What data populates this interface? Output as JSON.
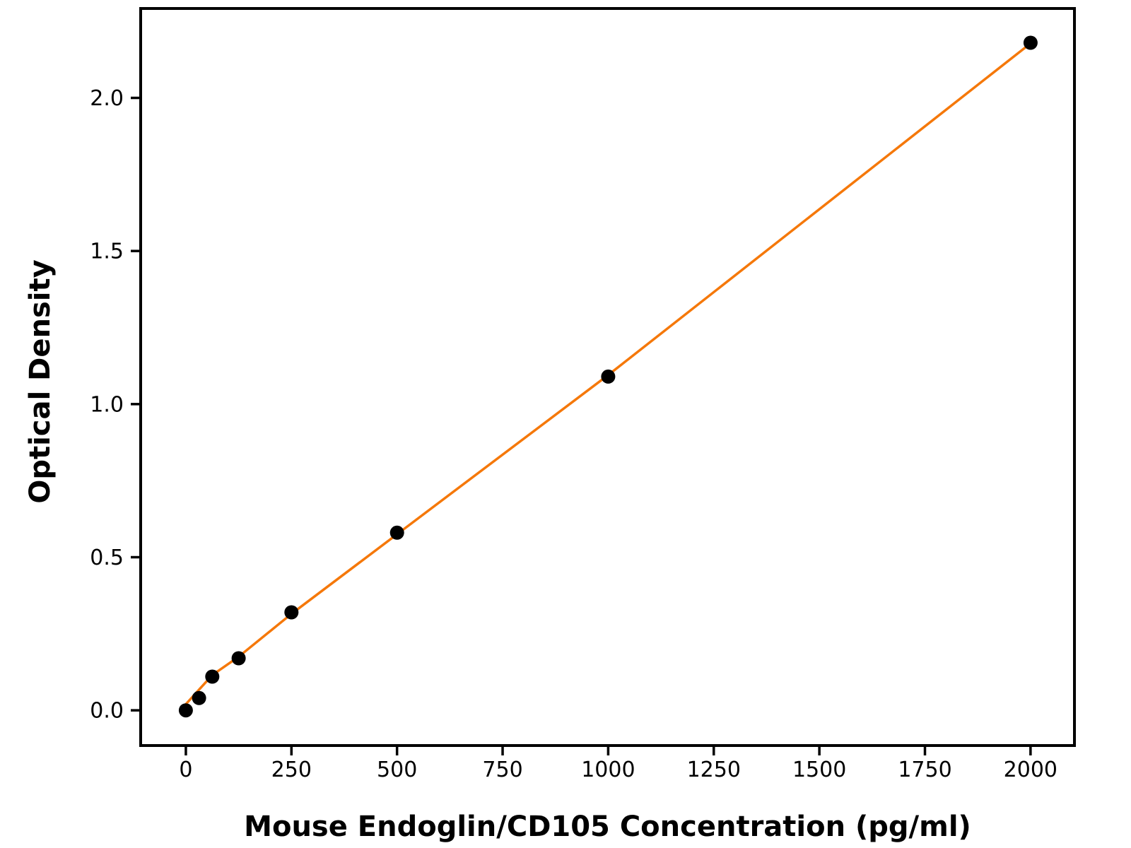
{
  "figure": {
    "background": "#ffffff",
    "text_color": "#000000"
  },
  "chart_data": {
    "type": "scatter",
    "title": "",
    "xlabel": "Mouse Endoglin/CD105 Concentration (pg/ml)",
    "ylabel": "Optical Density",
    "xlim": [
      -107,
      2104
    ],
    "ylim": [
      -0.115,
      2.292
    ],
    "x_ticks": [
      0,
      250,
      500,
      750,
      1000,
      1250,
      1500,
      1750,
      2000
    ],
    "x_tick_labels": [
      "0",
      "250",
      "500",
      "750",
      "1000",
      "1250",
      "1500",
      "1750",
      "2000"
    ],
    "y_ticks": [
      0.0,
      0.5,
      1.0,
      1.5,
      2.0
    ],
    "y_tick_labels": [
      "0.0",
      "0.5",
      "1.0",
      "1.5",
      "2.0"
    ],
    "grid": false,
    "legend_position": "none",
    "series": [
      {
        "name": "standard-points",
        "type": "scatter",
        "marker": "circle",
        "color": "#000000",
        "marker_radius": 10,
        "x": [
          0,
          31.25,
          62.5,
          125,
          250,
          500,
          1000,
          2000
        ],
        "y": [
          0.0,
          0.04,
          0.11,
          0.17,
          0.32,
          0.58,
          1.09,
          2.18
        ]
      }
    ],
    "fit_line": {
      "name": "standard-curve-fit",
      "color": "#f5780a",
      "width": 3.5,
      "points": [
        [
          0,
          0.02
        ],
        [
          62.5,
          0.115
        ],
        [
          125,
          0.175
        ],
        [
          250,
          0.315
        ],
        [
          500,
          0.575
        ],
        [
          1000,
          1.095
        ],
        [
          2000,
          2.178
        ]
      ]
    },
    "style": {
      "spine_color": "#000000",
      "spine_width": 4,
      "tick_length": 14,
      "tick_width": 3.5,
      "tick_font_size": 30
    }
  }
}
